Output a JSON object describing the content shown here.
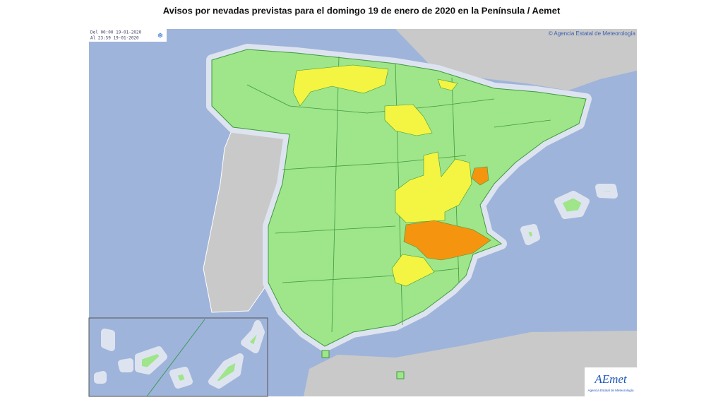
{
  "header": {
    "title": "Avisos por nevadas previstas para el domingo 19 de enero de 2020 en la Península / Aemet"
  },
  "map": {
    "validity": {
      "from": "Del 00:00 19-01-2020",
      "to": "Al 23:59 19-01-2020"
    },
    "copyright": "© Agencia Estatal de Meteorología",
    "logo": {
      "name": "AEmet",
      "subtitle": "Agencia Estatal de Meteorología"
    }
  }
}
